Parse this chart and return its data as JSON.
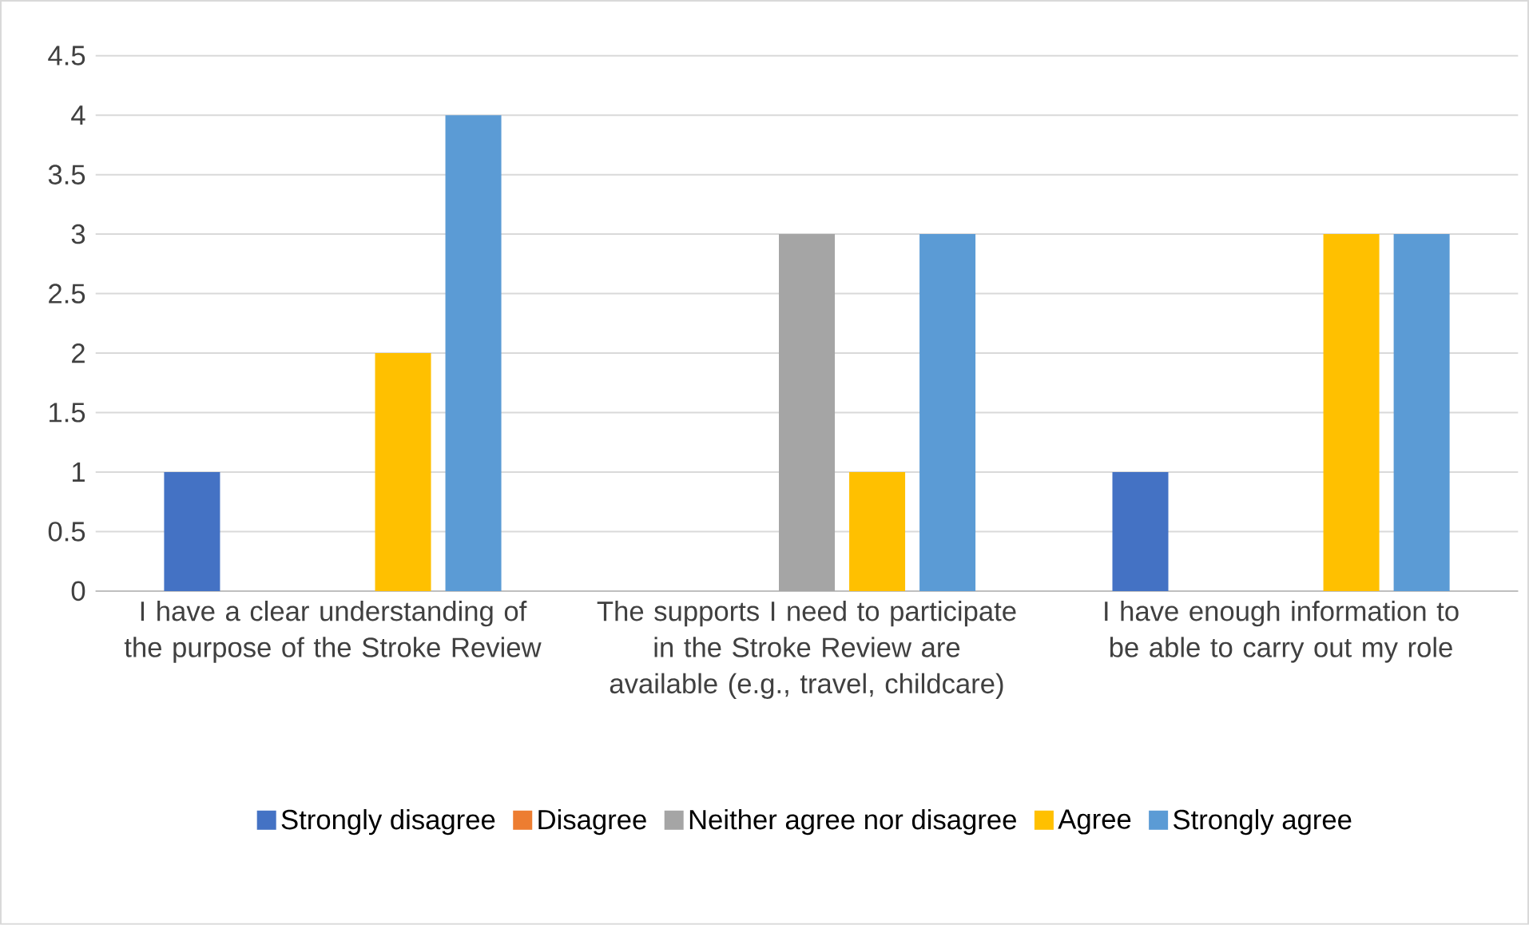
{
  "chart_data": {
    "type": "bar",
    "categories": [
      "I have a clear understanding of the purpose of the Stroke Review",
      "The supports I need to participate in the Stroke Review are available (e.g., travel, childcare)",
      "I have enough information to be able to carry out my role"
    ],
    "series": [
      {
        "name": "Strongly disagree",
        "color": "#4472c4",
        "values": [
          1,
          0,
          1
        ]
      },
      {
        "name": "Disagree",
        "color": "#ed7d31",
        "values": [
          0,
          0,
          0
        ]
      },
      {
        "name": "Neither agree nor disagree",
        "color": "#a5a5a5",
        "values": [
          0,
          3,
          0
        ]
      },
      {
        "name": "Agree",
        "color": "#ffc000",
        "values": [
          2,
          1,
          3
        ]
      },
      {
        "name": "Strongly agree",
        "color": "#5b9bd5",
        "values": [
          4,
          3,
          3
        ]
      }
    ],
    "ylim": [
      0,
      4.5
    ],
    "yticks": [
      0,
      0.5,
      1,
      1.5,
      2,
      2.5,
      3,
      3.5,
      4,
      4.5
    ],
    "grid": "y",
    "legend": "bottom"
  }
}
